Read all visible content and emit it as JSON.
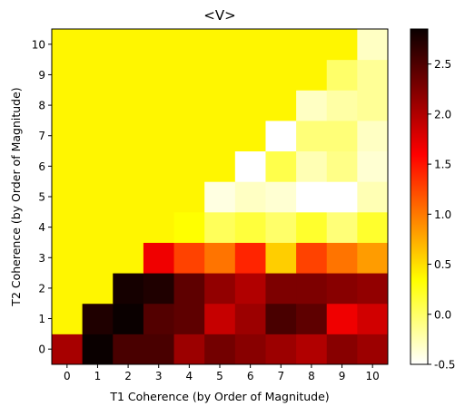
{
  "chart_data": {
    "type": "heatmap",
    "title": "<V>",
    "xlabel": "T1 Coherence (by Order of Magnitude)",
    "ylabel": "T2 Coherence (by Order of Magnitude)",
    "x_ticks": [
      "0",
      "1",
      "2",
      "3",
      "4",
      "5",
      "6",
      "7",
      "8",
      "9",
      "10"
    ],
    "y_ticks": [
      "0",
      "1",
      "2",
      "3",
      "4",
      "5",
      "6",
      "7",
      "8",
      "9",
      "10"
    ],
    "colormap": "hot_r",
    "vmin": -0.5,
    "vmax": 2.85,
    "colorbar_ticks": [
      "-0.5",
      "0.0",
      "0.5",
      "1.0",
      "1.5",
      "2.0",
      "2.5"
    ],
    "rows_bottom_to_top": [
      [
        2.05,
        2.85,
        2.5,
        2.5,
        2.1,
        2.3,
        2.2,
        2.1,
        2.0,
        2.2,
        2.1
      ],
      [
        0.4,
        2.7,
        2.85,
        2.45,
        2.4,
        1.9,
        2.1,
        2.5,
        2.4,
        1.7,
        1.85
      ],
      [
        0.4,
        0.4,
        2.75,
        2.7,
        2.4,
        2.15,
        2.0,
        2.25,
        2.25,
        2.2,
        2.15
      ],
      [
        0.4,
        0.4,
        0.4,
        1.7,
        1.3,
        1.05,
        1.45,
        0.6,
        1.3,
        1.05,
        0.85
      ],
      [
        0.4,
        0.4,
        0.4,
        0.4,
        0.35,
        0.05,
        0.15,
        0.0,
        0.2,
        -0.05,
        0.2
      ],
      [
        0.4,
        0.4,
        0.4,
        0.4,
        0.4,
        -0.4,
        -0.3,
        -0.35,
        -0.5,
        -0.5,
        -0.25
      ],
      [
        0.4,
        0.4,
        0.4,
        0.4,
        0.4,
        0.4,
        -0.5,
        0.1,
        -0.25,
        -0.1,
        -0.35
      ],
      [
        0.4,
        0.4,
        0.4,
        0.4,
        0.4,
        0.4,
        0.4,
        -0.5,
        -0.05,
        -0.05,
        -0.3
      ],
      [
        0.4,
        0.4,
        0.4,
        0.4,
        0.4,
        0.4,
        0.4,
        0.4,
        -0.3,
        -0.2,
        -0.15
      ],
      [
        0.4,
        0.4,
        0.4,
        0.4,
        0.4,
        0.4,
        0.4,
        0.4,
        0.4,
        0.0,
        -0.15
      ],
      [
        0.4,
        0.4,
        0.4,
        0.4,
        0.4,
        0.4,
        0.4,
        0.4,
        0.4,
        0.4,
        -0.3
      ]
    ]
  }
}
